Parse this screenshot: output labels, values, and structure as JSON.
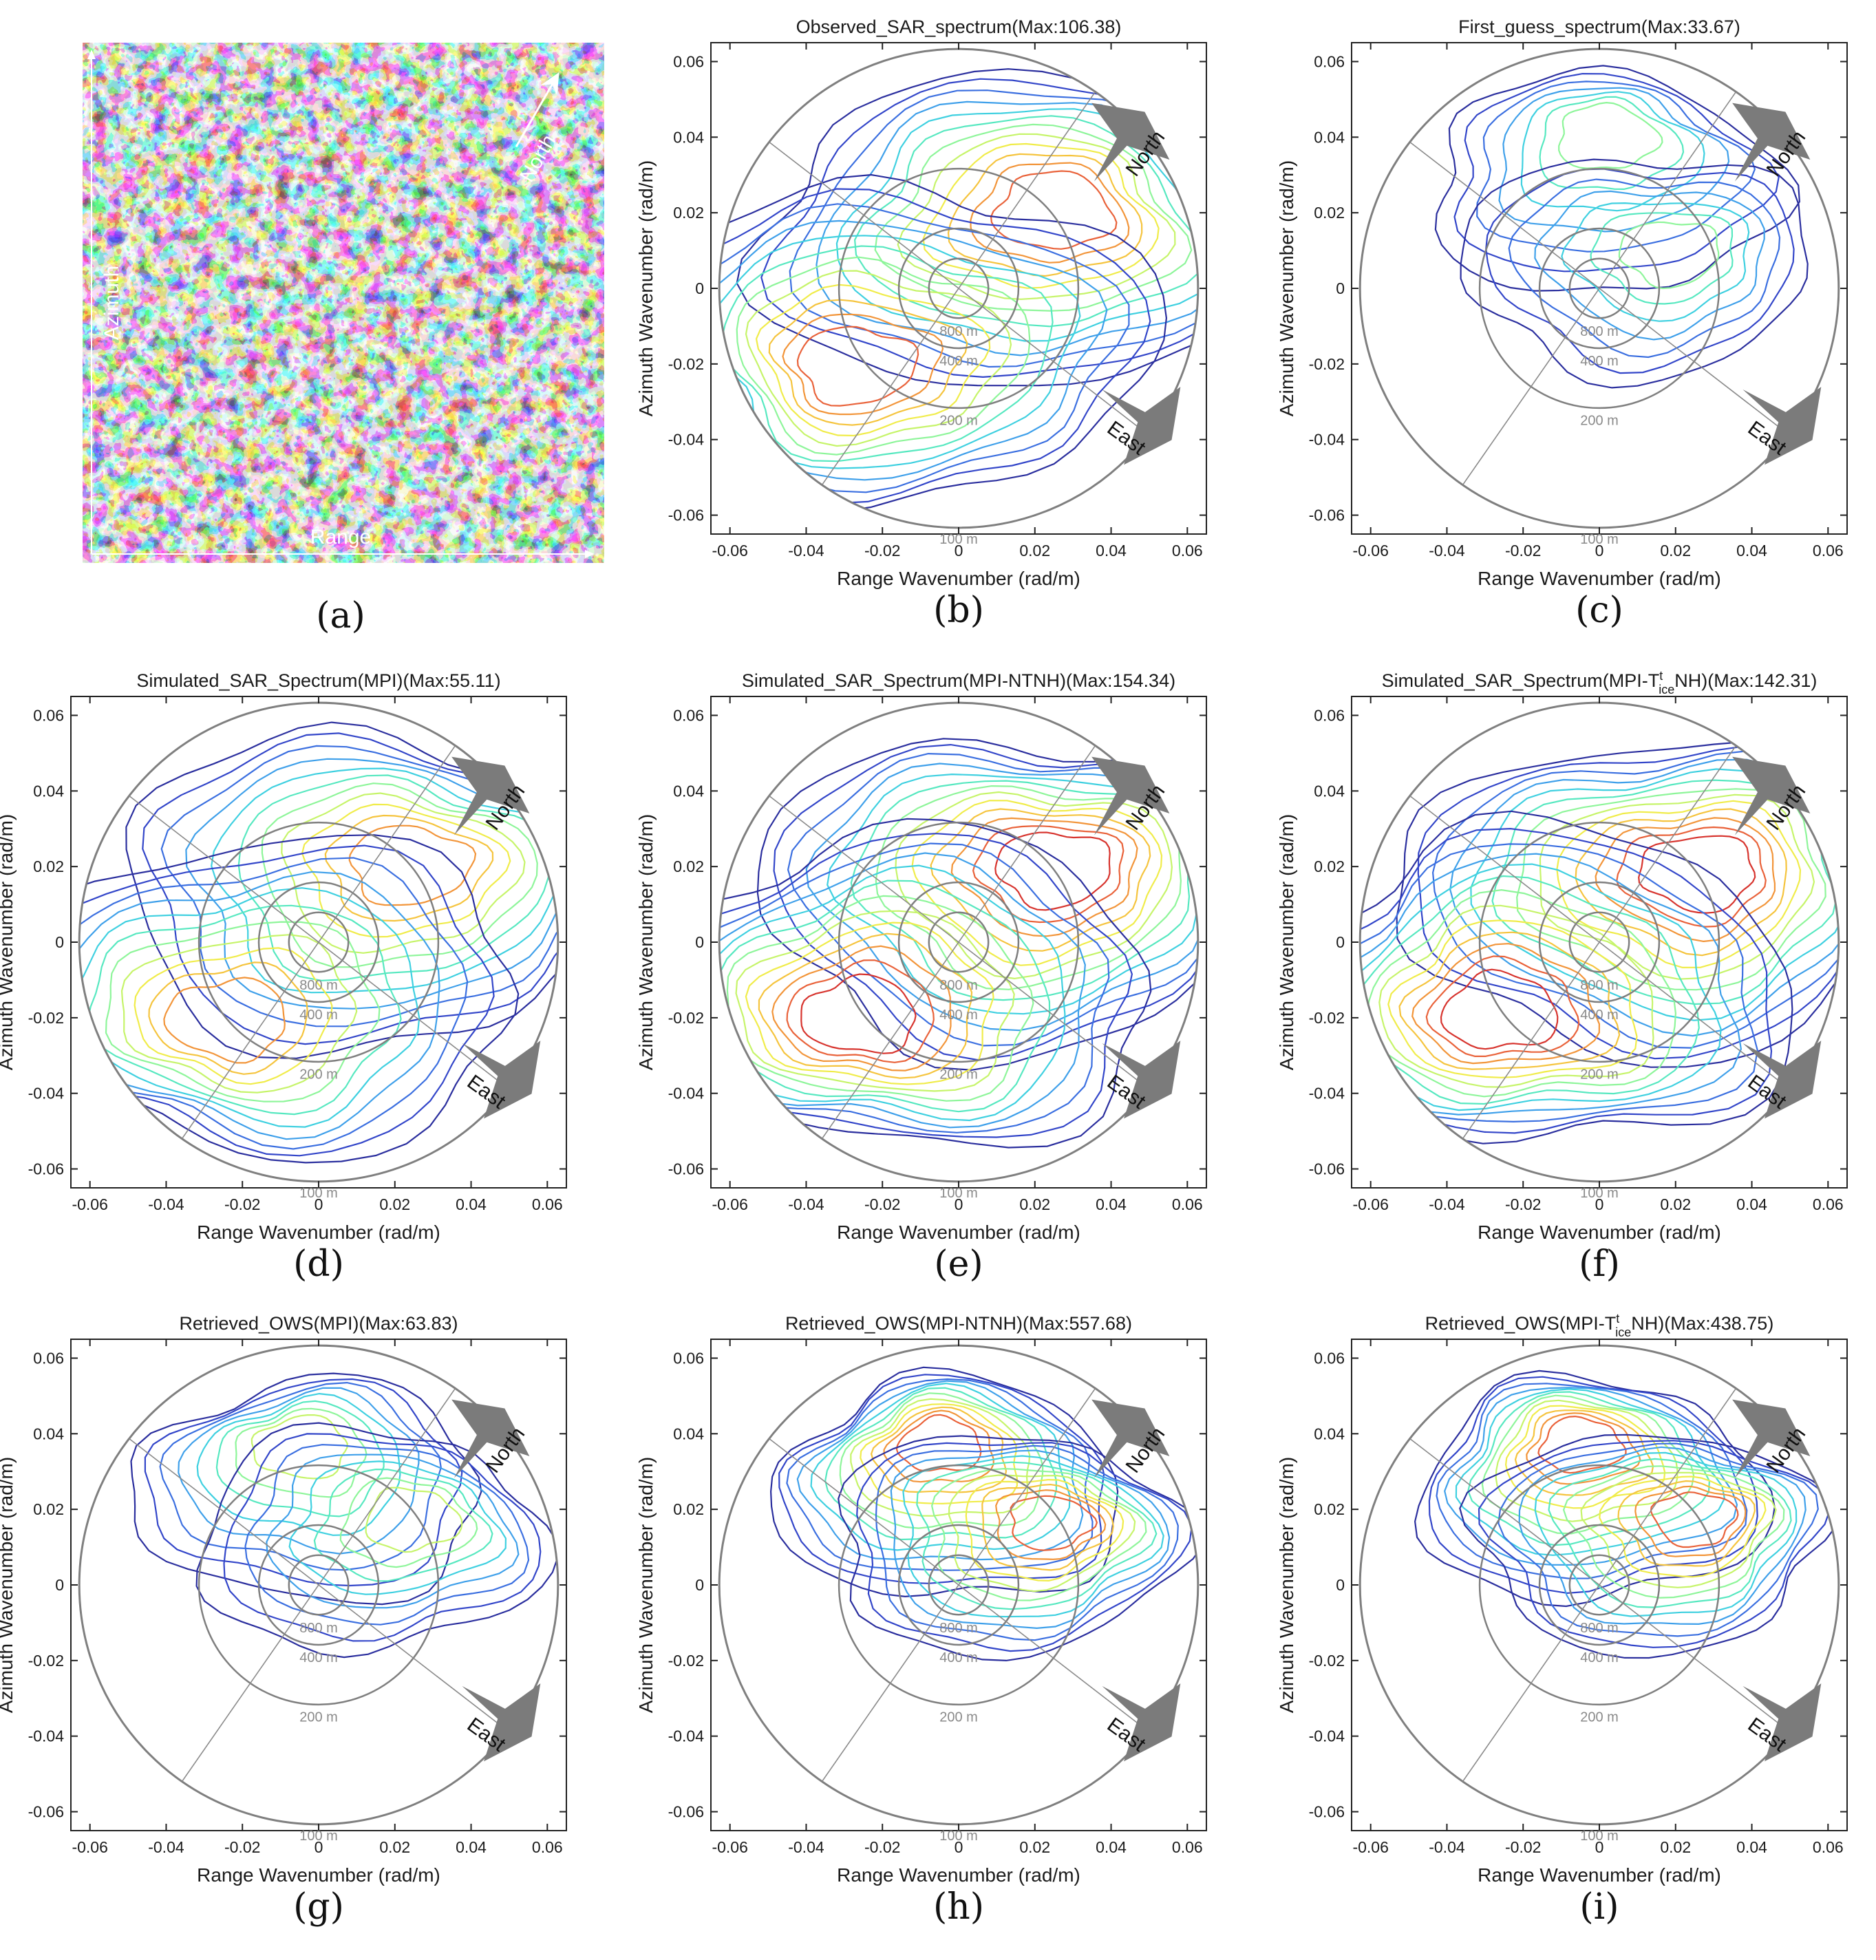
{
  "figure": {
    "sar_image": {
      "label": "(a)",
      "azimuth_label": "Azimuth",
      "range_label": "Range",
      "north_label": "North"
    },
    "axes_common": {
      "xlabel": "Range Wavenumber (rad/m)",
      "ylabel": "Azimuth Wavenumber (rad/m)",
      "xticks": [
        "-0.06",
        "-0.04",
        "-0.02",
        "0",
        "0.02",
        "0.04",
        "0.06"
      ],
      "yticks": [
        "0.06",
        "0.04",
        "0.02",
        "0",
        "-0.02",
        "-0.04",
        "-0.06"
      ],
      "ring_labels": [
        "800 m",
        "400 m",
        "200 m",
        "100 m"
      ],
      "north_label": "North",
      "east_label": "East"
    }
  },
  "chart_data": [
    {
      "type": "contour",
      "panel": "(b)",
      "title": "Observed_SAR_spectrum(Max:106.38)",
      "xlim": [
        -0.065,
        0.065
      ],
      "ylim": [
        -0.065,
        0.065
      ],
      "levels": 12,
      "symmetry": "point",
      "peaks": [
        [
          0.026,
          0.021
        ],
        [
          -0.028,
          -0.021
        ]
      ]
    },
    {
      "type": "contour",
      "panel": "(c)",
      "title": "First_guess_spectrum(Max:33.67)",
      "xlim": [
        -0.065,
        0.065
      ],
      "ylim": [
        -0.065,
        0.065
      ],
      "levels": 7,
      "symmetry": "none",
      "peaks": [
        [
          0.002,
          0.042
        ],
        [
          0.02,
          0.01
        ]
      ]
    },
    {
      "type": "contour",
      "panel": "(d)",
      "title": "Simulated_SAR_Spectrum(MPI)(Max:55.11)",
      "xlim": [
        -0.065,
        0.065
      ],
      "ylim": [
        -0.065,
        0.065
      ],
      "levels": 11,
      "symmetry": "point",
      "peaks": [
        [
          0.025,
          0.021
        ],
        [
          -0.025,
          -0.021
        ]
      ]
    },
    {
      "type": "contour",
      "panel": "(e)",
      "title": "Simulated_SAR_Spectrum(MPI-NTNH)(Max:154.34)",
      "xlim": [
        -0.065,
        0.065
      ],
      "ylim": [
        -0.065,
        0.065
      ],
      "levels": 13,
      "symmetry": "point",
      "peaks": [
        [
          0.026,
          0.02
        ],
        [
          -0.027,
          -0.02
        ]
      ]
    },
    {
      "type": "contour",
      "panel": "(f)",
      "title_main": "Simulated_SAR_Spectrum(MPI-T",
      "title_sup": "t",
      "title_sub": "ice",
      "title_end": "NH)(Max:142.31)",
      "xlim": [
        -0.065,
        0.065
      ],
      "ylim": [
        -0.065,
        0.065
      ],
      "levels": 13,
      "symmetry": "point",
      "peaks": [
        [
          0.027,
          0.019
        ],
        [
          -0.027,
          -0.019
        ]
      ]
    },
    {
      "type": "contour",
      "panel": "(g)",
      "title": "Retrieved_OWS(MPI)(Max:63.83)",
      "xlim": [
        -0.065,
        0.065
      ],
      "ylim": [
        -0.065,
        0.065
      ],
      "levels": 8,
      "symmetry": "none",
      "peaks": [
        [
          -0.005,
          0.038
        ],
        [
          0.026,
          0.018
        ]
      ]
    },
    {
      "type": "contour",
      "panel": "(h)",
      "title": "Retrieved_OWS(MPI-NTNH)(Max:557.68)",
      "xlim": [
        -0.065,
        0.065
      ],
      "ylim": [
        -0.065,
        0.065
      ],
      "levels": 12,
      "symmetry": "none",
      "peaks": [
        [
          -0.005,
          0.038
        ],
        [
          0.025,
          0.017
        ]
      ]
    },
    {
      "type": "contour",
      "panel": "(i)",
      "title_main": "Retrieved_OWS(MPI-T",
      "title_sup": "t",
      "title_sub": "ice",
      "title_end": "NH)(Max:438.75)",
      "xlim": [
        -0.065,
        0.065
      ],
      "ylim": [
        -0.065,
        0.065
      ],
      "levels": 12,
      "symmetry": "none",
      "peaks": [
        [
          -0.005,
          0.038
        ],
        [
          0.026,
          0.018
        ]
      ]
    }
  ]
}
